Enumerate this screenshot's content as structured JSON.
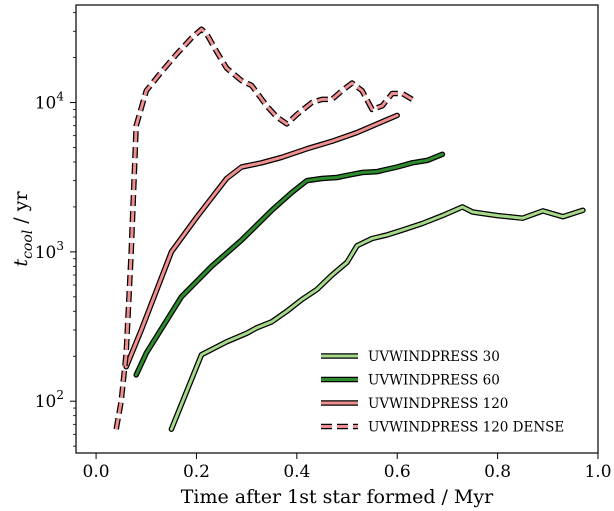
{
  "chart_data": {
    "type": "line",
    "title": "",
    "xlabel": "Time after 1st star formed / Myr",
    "ylabel_main": "t",
    "ylabel_sub": "cool",
    "ylabel_unit": " / yr",
    "xlim": [
      -0.04,
      1.0
    ],
    "ylim": [
      45,
      45000
    ],
    "yscale": "log",
    "grid": false,
    "legend_position": "lower-right",
    "x_ticks": [
      {
        "value": 0.0,
        "label": "0.0"
      },
      {
        "value": 0.2,
        "label": "0.2"
      },
      {
        "value": 0.4,
        "label": "0.4"
      },
      {
        "value": 0.6,
        "label": "0.6"
      },
      {
        "value": 0.8,
        "label": "0.8"
      },
      {
        "value": 1.0,
        "label": "1.0"
      }
    ],
    "y_ticks": [
      {
        "value": 100,
        "base": "10",
        "exp": "2"
      },
      {
        "value": 1000,
        "base": "10",
        "exp": "3"
      },
      {
        "value": 10000,
        "base": "10",
        "exp": "4"
      }
    ],
    "series": [
      {
        "name": "UVWINDPRESS 30",
        "color": "#a6d98a",
        "dashed": false,
        "x": [
          0.15,
          0.21,
          0.26,
          0.3,
          0.32,
          0.35,
          0.38,
          0.41,
          0.44,
          0.47,
          0.5,
          0.52,
          0.55,
          0.58,
          0.61,
          0.65,
          0.69,
          0.73,
          0.75,
          0.8,
          0.85,
          0.89,
          0.93,
          0.97
        ],
        "y": [
          65,
          205,
          250,
          285,
          310,
          340,
          400,
          480,
          560,
          700,
          850,
          1100,
          1230,
          1300,
          1400,
          1550,
          1750,
          2000,
          1850,
          1750,
          1680,
          1880,
          1720,
          1900
        ]
      },
      {
        "name": "UVWINDPRESS 60",
        "color": "#2e8b2e",
        "dashed": false,
        "x": [
          0.08,
          0.1,
          0.17,
          0.23,
          0.29,
          0.35,
          0.39,
          0.42,
          0.45,
          0.48,
          0.5,
          0.53,
          0.56,
          0.6,
          0.63,
          0.66,
          0.69
        ],
        "y": [
          150,
          210,
          500,
          800,
          1200,
          1900,
          2500,
          3000,
          3100,
          3150,
          3250,
          3400,
          3450,
          3700,
          3950,
          4100,
          4500
        ]
      },
      {
        "name": "UVWINDPRESS 120",
        "color": "#f08f8f",
        "dashed": false,
        "x": [
          0.06,
          0.09,
          0.15,
          0.2,
          0.26,
          0.29,
          0.33,
          0.37,
          0.42,
          0.47,
          0.52,
          0.56,
          0.6
        ],
        "y": [
          170,
          300,
          1000,
          1700,
          3100,
          3700,
          3950,
          4300,
          4900,
          5500,
          6300,
          7200,
          8200
        ]
      },
      {
        "name": "UVWINDPRESS 120 DENSE",
        "color": "#f08f8f",
        "dashed": true,
        "x": [
          0.04,
          0.05,
          0.06,
          0.07,
          0.08,
          0.1,
          0.13,
          0.16,
          0.19,
          0.21,
          0.22,
          0.24,
          0.26,
          0.29,
          0.31,
          0.34,
          0.36,
          0.38,
          0.4,
          0.43,
          0.45,
          0.47,
          0.49,
          0.51,
          0.53,
          0.55,
          0.57,
          0.59,
          0.61,
          0.63
        ],
        "y": [
          65,
          100,
          210,
          1000,
          7000,
          12000,
          16000,
          21000,
          27000,
          31000,
          29000,
          22000,
          17000,
          14000,
          13000,
          9500,
          8000,
          7200,
          8300,
          10000,
          10500,
          10500,
          12000,
          13500,
          12000,
          9000,
          9500,
          11500,
          11500,
          10500
        ]
      }
    ]
  }
}
